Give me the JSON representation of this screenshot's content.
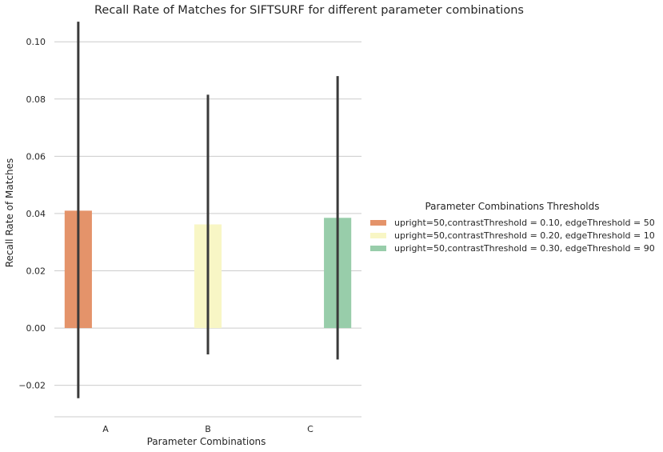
{
  "chart_data": {
    "type": "bar",
    "title": "Recall Rate of Matches for SIFTSURF for different parameter combinations",
    "xlabel": "Parameter Combinations",
    "ylabel": "Recall Rate of Matches",
    "categories": [
      "A",
      "B",
      "C"
    ],
    "ylim": [
      -0.031,
      0.109
    ],
    "yticks": [
      "−0.02",
      "0.00",
      "0.02",
      "0.04",
      "0.06",
      "0.08",
      "0.10"
    ],
    "grid": true,
    "legend_title": "Parameter Combinations Thresholds",
    "legend_position": "right",
    "series": [
      {
        "name": "upright=50,contrastThreshold = 0.10, edgeThreshold = 50",
        "color": "#e4936a",
        "values": [
          0.041,
          null,
          null
        ],
        "error_low": [
          -0.0245,
          null,
          null
        ],
        "error_high": [
          0.107,
          null,
          null
        ]
      },
      {
        "name": "upright=50,contrastThreshold = 0.20, edgeThreshold = 10",
        "color": "#f8f6c5",
        "values": [
          null,
          0.0362,
          null
        ],
        "error_low": [
          null,
          -0.0092,
          null
        ],
        "error_high": [
          null,
          0.0815,
          null
        ]
      },
      {
        "name": "upright=50,contrastThreshold = 0.30, edgeThreshold = 90",
        "color": "#98cdaa",
        "values": [
          null,
          null,
          0.0385
        ],
        "error_low": [
          null,
          null,
          -0.011
        ],
        "error_high": [
          null,
          null,
          0.088
        ]
      }
    ]
  }
}
